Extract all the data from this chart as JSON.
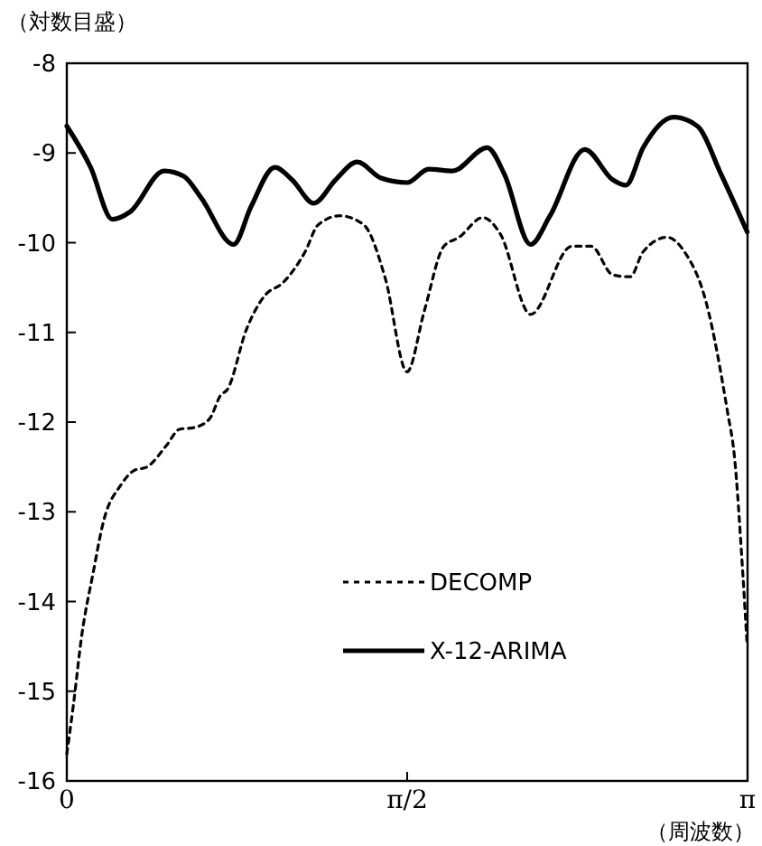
{
  "chart_data": {
    "type": "line",
    "xlabel": "（周波数）",
    "ylabel": "（対数目盛）",
    "xlim": [
      0,
      3.1416
    ],
    "ylim": [
      -16,
      -8
    ],
    "xticks": [
      0,
      {
        "value": 1.5708,
        "label": "π/2"
      },
      {
        "value": 3.1416,
        "label": "π"
      }
    ],
    "yticks": [
      -16,
      -15,
      -14,
      -13,
      -12,
      -11,
      -10,
      -9,
      -8
    ],
    "grid": false,
    "legend": "bottom",
    "series": [
      {
        "name": "DECOMP",
        "color": "#000000",
        "line_style": "dotted",
        "x": [
          0,
          0.03,
          0.07,
          0.12,
          0.17,
          0.25,
          0.31,
          0.37,
          0.46,
          0.52,
          0.59,
          0.66,
          0.71,
          0.74,
          0.83,
          0.91,
          1.0,
          1.1,
          1.16,
          1.26,
          1.37,
          1.47,
          1.57,
          1.65,
          1.74,
          1.81,
          1.92,
          2.0,
          2.14,
          2.33,
          2.42,
          2.52,
          2.6,
          2.66,
          2.77,
          2.85,
          2.95,
          3.05,
          3.08,
          3.12,
          3.14
        ],
        "values": [
          -15.7,
          -15.16,
          -14.36,
          -13.7,
          -13.1,
          -12.7,
          -12.54,
          -12.5,
          -12.26,
          -12.08,
          -12.06,
          -11.96,
          -11.7,
          -11.64,
          -10.96,
          -10.6,
          -10.44,
          -10.1,
          -9.8,
          -9.7,
          -9.8,
          -10.4,
          -11.44,
          -10.76,
          -10.04,
          -9.94,
          -9.72,
          -9.9,
          -10.8,
          -10.04,
          -10.04,
          -10.36,
          -10.38,
          -10.1,
          -9.94,
          -10.1,
          -10.66,
          -11.9,
          -12.36,
          -13.7,
          -14.5
        ]
      },
      {
        "name": "X-12-ARIMA",
        "color": "#000000",
        "line_style": "solid",
        "x": [
          0,
          0.11,
          0.21,
          0.29,
          0.45,
          0.54,
          0.62,
          0.77,
          0.85,
          0.96,
          1.04,
          1.14,
          1.24,
          1.34,
          1.45,
          1.57,
          1.67,
          1.78,
          1.94,
          2.02,
          2.14,
          2.23,
          2.39,
          2.52,
          2.58,
          2.66,
          2.8,
          2.91,
          3.02,
          3.14
        ],
        "values": [
          -8.7,
          -9.16,
          -9.74,
          -9.66,
          -9.2,
          -9.26,
          -9.5,
          -10.02,
          -9.6,
          -9.16,
          -9.3,
          -9.56,
          -9.3,
          -9.1,
          -9.28,
          -9.33,
          -9.18,
          -9.2,
          -8.94,
          -9.24,
          -10.02,
          -9.7,
          -8.96,
          -9.3,
          -9.36,
          -8.94,
          -8.6,
          -8.7,
          -9.24,
          -9.88
        ]
      }
    ]
  }
}
